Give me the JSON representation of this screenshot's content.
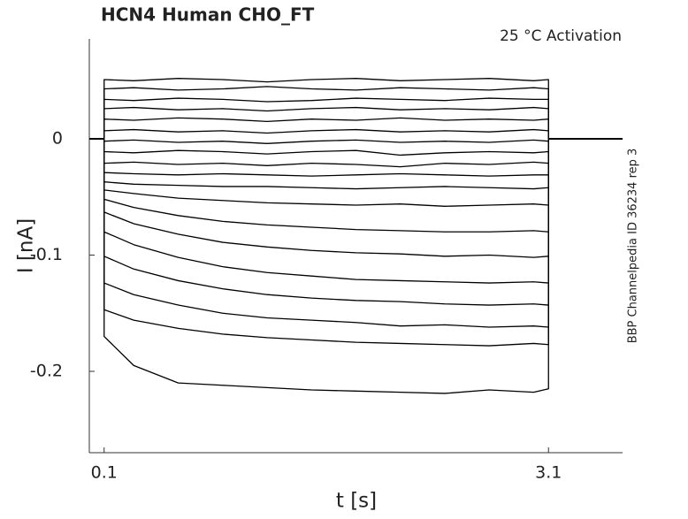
{
  "chart_data": {
    "type": "line",
    "title": "HCN4  Human  CHO_FT",
    "annotation": "25 °C  Activation",
    "side_note": "BBP Channelpedia ID 36234 rep 3",
    "xlabel": "t [s]",
    "ylabel": "I [nA]",
    "color": "#000000",
    "xlim": [
      0,
      3.6
    ],
    "ylim": [
      -0.27,
      0.086
    ],
    "xticks": [
      0.1,
      3.1
    ],
    "yticks": [
      0,
      -0.1,
      -0.2
    ],
    "grid": false,
    "x": [
      0,
      0.1,
      0.1,
      0.3,
      0.6,
      0.9,
      1.2,
      1.5,
      1.8,
      2.1,
      2.4,
      2.7,
      3.0,
      3.1,
      3.1,
      3.6
    ],
    "series": [
      {
        "values": [
          0,
          0,
          0.051,
          0.05,
          0.052,
          0.051,
          0.049,
          0.051,
          0.052,
          0.05,
          0.051,
          0.052,
          0.05,
          0.051,
          0,
          0
        ]
      },
      {
        "values": [
          0,
          0,
          0.043,
          0.044,
          0.042,
          0.043,
          0.045,
          0.043,
          0.042,
          0.044,
          0.043,
          0.042,
          0.044,
          0.043,
          0,
          0
        ]
      },
      {
        "values": [
          0,
          0,
          0.034,
          0.033,
          0.035,
          0.034,
          0.032,
          0.033,
          0.035,
          0.034,
          0.033,
          0.035,
          0.034,
          0.034,
          0,
          0
        ]
      },
      {
        "values": [
          0,
          0,
          0.026,
          0.027,
          0.025,
          0.026,
          0.024,
          0.026,
          0.027,
          0.025,
          0.026,
          0.025,
          0.027,
          0.026,
          0,
          0
        ]
      },
      {
        "values": [
          0,
          0,
          0.017,
          0.016,
          0.018,
          0.017,
          0.015,
          0.017,
          0.016,
          0.018,
          0.016,
          0.017,
          0.016,
          0.017,
          0,
          0
        ]
      },
      {
        "values": [
          0,
          0,
          0.007,
          0.008,
          0.006,
          0.007,
          0.005,
          0.007,
          0.008,
          0.006,
          0.007,
          0.006,
          0.008,
          0.007,
          0,
          0
        ]
      },
      {
        "values": [
          0,
          0,
          -0.002,
          -0.001,
          -0.003,
          -0.002,
          -0.004,
          -0.002,
          -0.001,
          -0.003,
          -0.002,
          -0.003,
          -0.001,
          -0.002,
          0,
          0
        ]
      },
      {
        "values": [
          0,
          0,
          -0.011,
          -0.012,
          -0.01,
          -0.011,
          -0.013,
          -0.011,
          -0.01,
          -0.014,
          -0.012,
          -0.011,
          -0.012,
          -0.011,
          0,
          0
        ]
      },
      {
        "values": [
          0,
          0,
          -0.021,
          -0.02,
          -0.022,
          -0.021,
          -0.023,
          -0.021,
          -0.022,
          -0.024,
          -0.021,
          -0.022,
          -0.02,
          -0.021,
          0,
          0
        ]
      },
      {
        "values": [
          0,
          0,
          -0.029,
          -0.03,
          -0.031,
          -0.03,
          -0.031,
          -0.032,
          -0.031,
          -0.03,
          -0.031,
          -0.032,
          -0.031,
          -0.031,
          0,
          0
        ]
      },
      {
        "values": [
          0,
          0,
          -0.037,
          -0.039,
          -0.04,
          -0.041,
          -0.041,
          -0.042,
          -0.043,
          -0.042,
          -0.041,
          -0.042,
          -0.043,
          -0.042,
          0,
          0
        ]
      },
      {
        "values": [
          0,
          0,
          -0.044,
          -0.047,
          -0.051,
          -0.053,
          -0.055,
          -0.056,
          -0.057,
          -0.056,
          -0.058,
          -0.057,
          -0.056,
          -0.057,
          0,
          0
        ]
      },
      {
        "values": [
          0,
          0,
          -0.052,
          -0.059,
          -0.066,
          -0.071,
          -0.074,
          -0.076,
          -0.078,
          -0.079,
          -0.08,
          -0.08,
          -0.079,
          -0.08,
          0,
          0
        ]
      },
      {
        "values": [
          0,
          0,
          -0.063,
          -0.073,
          -0.082,
          -0.089,
          -0.093,
          -0.096,
          -0.098,
          -0.099,
          -0.101,
          -0.1,
          -0.102,
          -0.101,
          0,
          0
        ]
      },
      {
        "values": [
          0,
          0,
          -0.08,
          -0.091,
          -0.102,
          -0.11,
          -0.115,
          -0.118,
          -0.121,
          -0.122,
          -0.123,
          -0.124,
          -0.123,
          -0.124,
          0,
          0
        ]
      },
      {
        "values": [
          0,
          0,
          -0.101,
          -0.112,
          -0.122,
          -0.129,
          -0.134,
          -0.137,
          -0.139,
          -0.14,
          -0.142,
          -0.143,
          -0.142,
          -0.143,
          0,
          0
        ]
      },
      {
        "values": [
          0,
          0,
          -0.124,
          -0.134,
          -0.143,
          -0.15,
          -0.154,
          -0.156,
          -0.158,
          -0.161,
          -0.16,
          -0.162,
          -0.161,
          -0.162,
          0,
          0
        ]
      },
      {
        "values": [
          0,
          0,
          -0.147,
          -0.156,
          -0.163,
          -0.168,
          -0.171,
          -0.173,
          -0.175,
          -0.176,
          -0.177,
          -0.178,
          -0.176,
          -0.177,
          0,
          0
        ]
      },
      {
        "values": [
          0,
          0,
          -0.17,
          -0.195,
          -0.21,
          -0.212,
          -0.214,
          -0.216,
          -0.217,
          -0.218,
          -0.219,
          -0.216,
          -0.218,
          -0.215,
          0,
          0
        ]
      }
    ]
  }
}
